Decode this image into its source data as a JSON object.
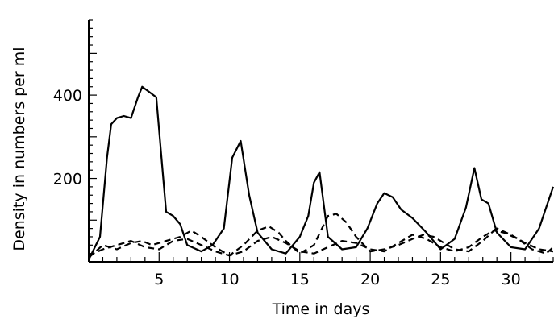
{
  "chart_data": {
    "type": "line",
    "title": "",
    "xlabel": "Time in days",
    "ylabel": "Density in numbers per ml",
    "xlim": [
      0,
      33
    ],
    "ylim": [
      0,
      580
    ],
    "x_ticks": [
      {
        "value": 5,
        "label": "5"
      },
      {
        "value": 10,
        "label": "10"
      },
      {
        "value": 15,
        "label": "15"
      },
      {
        "value": 20,
        "label": "20"
      },
      {
        "value": 25,
        "label": "25"
      },
      {
        "value": 30,
        "label": "30"
      }
    ],
    "y_ticks": [
      {
        "value": 200,
        "label": "200"
      },
      {
        "value": 400,
        "label": "400"
      }
    ],
    "series": [
      {
        "style": "solid",
        "points": [
          [
            0.0,
            5
          ],
          [
            0.8,
            60
          ],
          [
            1.3,
            250
          ],
          [
            1.6,
            330
          ],
          [
            2.0,
            345
          ],
          [
            2.5,
            350
          ],
          [
            3.0,
            345
          ],
          [
            3.5,
            395
          ],
          [
            3.8,
            420
          ],
          [
            4.2,
            410
          ],
          [
            4.8,
            395
          ],
          [
            5.5,
            120
          ],
          [
            6.0,
            110
          ],
          [
            6.5,
            90
          ],
          [
            7.0,
            40
          ],
          [
            8.0,
            25
          ],
          [
            8.8,
            40
          ],
          [
            9.6,
            80
          ],
          [
            10.2,
            250
          ],
          [
            10.8,
            290
          ],
          [
            11.4,
            160
          ],
          [
            12.0,
            70
          ],
          [
            13.0,
            30
          ],
          [
            14.0,
            20
          ],
          [
            15.0,
            60
          ],
          [
            15.6,
            110
          ],
          [
            16.0,
            190
          ],
          [
            16.4,
            215
          ],
          [
            17.0,
            60
          ],
          [
            18.0,
            30
          ],
          [
            19.0,
            35
          ],
          [
            19.8,
            80
          ],
          [
            20.5,
            140
          ],
          [
            21.0,
            165
          ],
          [
            21.6,
            155
          ],
          [
            22.2,
            125
          ],
          [
            23.0,
            105
          ],
          [
            24.0,
            70
          ],
          [
            25.0,
            30
          ],
          [
            26.0,
            55
          ],
          [
            26.8,
            130
          ],
          [
            27.4,
            225
          ],
          [
            27.9,
            150
          ],
          [
            28.4,
            140
          ],
          [
            29.0,
            70
          ],
          [
            30.0,
            35
          ],
          [
            31.0,
            30
          ],
          [
            32.0,
            80
          ],
          [
            33.0,
            180
          ]
        ]
      },
      {
        "style": "dashed",
        "points": [
          [
            0.0,
            10
          ],
          [
            1.0,
            40
          ],
          [
            2.0,
            30
          ],
          [
            3.0,
            45
          ],
          [
            3.8,
            50
          ],
          [
            4.5,
            40
          ],
          [
            5.5,
            50
          ],
          [
            6.5,
            60
          ],
          [
            7.3,
            75
          ],
          [
            8.0,
            60
          ],
          [
            9.0,
            35
          ],
          [
            10.0,
            15
          ],
          [
            11.0,
            40
          ],
          [
            12.0,
            75
          ],
          [
            12.8,
            85
          ],
          [
            13.5,
            70
          ],
          [
            14.0,
            50
          ],
          [
            15.0,
            20
          ],
          [
            16.0,
            40
          ],
          [
            17.0,
            110
          ],
          [
            17.6,
            115
          ],
          [
            18.3,
            95
          ],
          [
            19.0,
            60
          ],
          [
            20.0,
            25
          ],
          [
            21.0,
            30
          ],
          [
            22.0,
            40
          ],
          [
            23.0,
            55
          ],
          [
            23.8,
            65
          ],
          [
            24.5,
            60
          ],
          [
            25.0,
            50
          ],
          [
            26.0,
            30
          ],
          [
            27.0,
            25
          ],
          [
            28.0,
            50
          ],
          [
            28.8,
            75
          ],
          [
            29.5,
            70
          ],
          [
            30.5,
            55
          ],
          [
            31.5,
            30
          ],
          [
            32.5,
            20
          ],
          [
            33.0,
            35
          ]
        ]
      },
      {
        "style": "dashed",
        "points": [
          [
            0.0,
            15
          ],
          [
            1.0,
            30
          ],
          [
            2.0,
            40
          ],
          [
            3.0,
            50
          ],
          [
            4.0,
            35
          ],
          [
            5.0,
            30
          ],
          [
            6.0,
            50
          ],
          [
            7.0,
            55
          ],
          [
            8.0,
            40
          ],
          [
            9.0,
            25
          ],
          [
            10.0,
            15
          ],
          [
            11.0,
            25
          ],
          [
            12.0,
            50
          ],
          [
            13.0,
            60
          ],
          [
            14.0,
            45
          ],
          [
            15.0,
            25
          ],
          [
            16.0,
            20
          ],
          [
            17.0,
            35
          ],
          [
            18.0,
            50
          ],
          [
            19.0,
            45
          ],
          [
            20.0,
            30
          ],
          [
            21.0,
            25
          ],
          [
            22.0,
            45
          ],
          [
            23.0,
            65
          ],
          [
            24.0,
            55
          ],
          [
            25.0,
            35
          ],
          [
            26.0,
            25
          ],
          [
            27.0,
            35
          ],
          [
            28.0,
            60
          ],
          [
            29.0,
            80
          ],
          [
            30.0,
            65
          ],
          [
            31.0,
            45
          ],
          [
            32.0,
            30
          ],
          [
            33.0,
            25
          ]
        ]
      }
    ]
  }
}
